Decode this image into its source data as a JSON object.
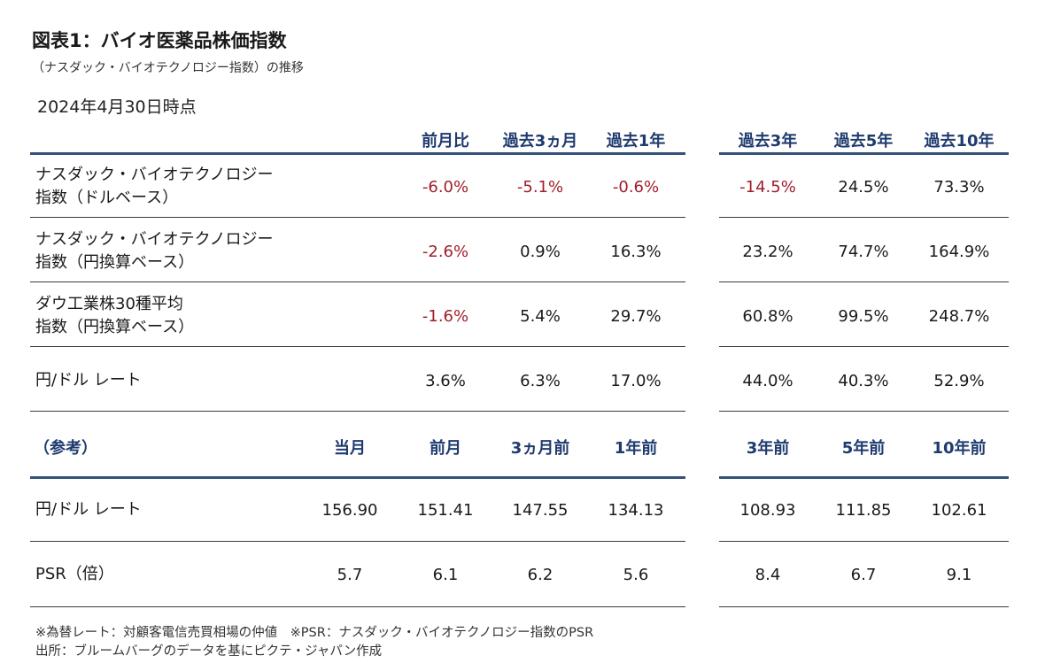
{
  "title": "図表1：バイオ医薬品株価指数",
  "subtitle": "（ナスダック・バイオテクノロジー指数）の推移",
  "as_of": "2024年4月30日時点",
  "returns_table": {
    "headers": [
      "前月比",
      "過去3ヵ月",
      "過去1年",
      "過去3年",
      "過去5年",
      "過去10年"
    ],
    "rows": [
      {
        "label1": "ナスダック・バイオテクノロジー",
        "label2": "指数（ドルベース）",
        "values": [
          "-6.0%",
          "-5.1%",
          "-0.6%",
          "-14.5%",
          "24.5%",
          "73.3%"
        ]
      },
      {
        "label1": "ナスダック・バイオテクノロジー",
        "label2": "指数（円換算ベース）",
        "values": [
          "-2.6%",
          "0.9%",
          "16.3%",
          "23.2%",
          "74.7%",
          "164.9%"
        ]
      },
      {
        "label1": "ダウ工業株30種平均",
        "label2": "指数（円換算ベース）",
        "values": [
          "-1.6%",
          "5.4%",
          "29.7%",
          "60.8%",
          "99.5%",
          "248.7%"
        ]
      },
      {
        "label1": "円/ドル レート",
        "label2": "",
        "values": [
          "3.6%",
          "6.3%",
          "17.0%",
          "44.0%",
          "40.3%",
          "52.9%"
        ]
      }
    ]
  },
  "reference_table": {
    "label": "（参考）",
    "headers": [
      "当月",
      "前月",
      "3ヵ月前",
      "1年前",
      "3年前",
      "5年前",
      "10年前"
    ],
    "rows": [
      {
        "label": "円/ドル レート",
        "values": [
          "156.90",
          "151.41",
          "147.55",
          "134.13",
          "108.93",
          "111.85",
          "102.61"
        ]
      },
      {
        "label": "PSR（倍）",
        "values": [
          "5.7",
          "6.1",
          "6.2",
          "5.6",
          "8.4",
          "6.7",
          "9.1"
        ]
      }
    ]
  },
  "notes": [
    "※為替レート：対顧客電信売買相場の仲値　※PSR：ナスダック・バイオテクノロジー指数のPSR",
    "出所：ブルームバーグのデータを基にピクテ・ジャパン作成"
  ],
  "colors": {
    "negative": "#a01e2a",
    "header": "#1f3b6e",
    "rule": "#33527a"
  }
}
